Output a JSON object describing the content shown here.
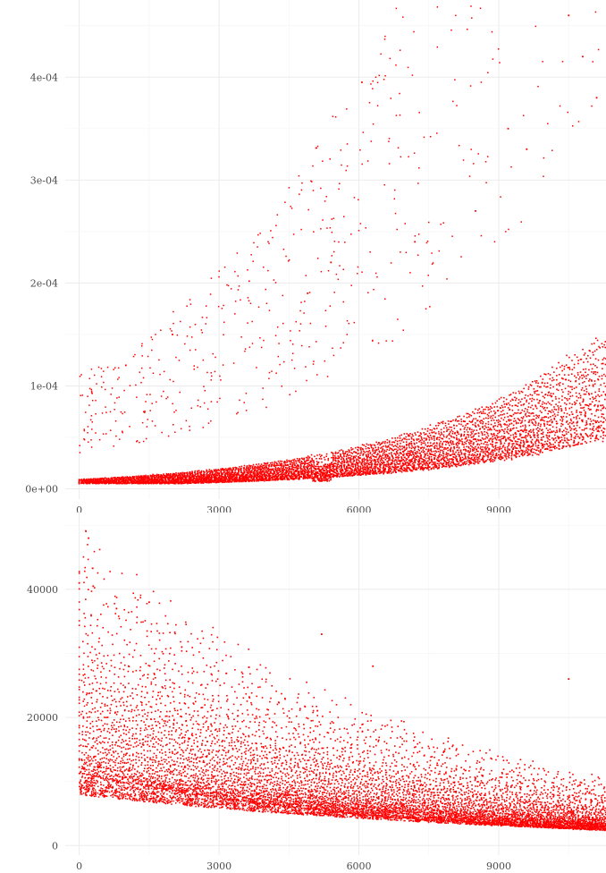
{
  "charts": [
    {
      "type": "scatter",
      "title": "",
      "xlabel": "",
      "ylabel": "",
      "xlim": [
        -300,
        11300
      ],
      "ylim": [
        -1e-05,
        0.000475
      ],
      "x_ticks": [
        0,
        3000,
        6000,
        9000
      ],
      "x_tick_labels": [
        "0",
        "3000",
        "6000",
        "9000"
      ],
      "y_ticks": [
        0,
        0.0001,
        0.0002,
        0.0003,
        0.0004
      ],
      "y_tick_labels": [
        "0e+00",
        "1e-04",
        "2e-04",
        "3e-04",
        "4e-04"
      ],
      "grid": true,
      "point_color": "#ff0000",
      "band_model": {
        "k_min": 1,
        "k_max": 42,
        "base": 9.5e-06,
        "c_offset": 26000,
        "step": 1400
      },
      "series": [
        {
          "x": [
            0,
            500,
            1000,
            2000,
            3000,
            4000,
            5000,
            6000,
            7000,
            8000,
            9000,
            10000,
            11000
          ],
          "y": [
            6e-05,
            6.5e-05,
            7e-05,
            8e-05,
            9.5e-05,
            0.00011,
            0.00012,
            0.000135,
            0.00016,
            0.00019,
            0.00023,
            0.00028,
            0.00034
          ]
        },
        {
          "x": [
            10500,
            10800,
            11100,
            9200,
            9600,
            4900,
            5400,
            7200,
            8500,
            2000,
            1000
          ],
          "y": [
            0.00046,
            0.00042,
            0.00038,
            0.00035,
            0.00033,
            0.00019,
            0.00022,
            0.00024,
            0.00027,
            0.00015,
            0.00012
          ]
        }
      ]
    },
    {
      "type": "scatter",
      "title": "",
      "xlabel": "",
      "ylabel": "",
      "xlim": [
        -300,
        11300
      ],
      "ylim": [
        -1500,
        52000
      ],
      "x_ticks": [
        0,
        3000,
        6000,
        9000
      ],
      "x_tick_labels": [
        "0",
        "3000",
        "6000",
        "9000"
      ],
      "y_ticks": [
        0,
        20000,
        40000
      ],
      "y_tick_labels": [
        "0",
        "20000",
        "40000"
      ],
      "grid": true,
      "point_color": "#ff0000",
      "series": [
        {
          "x": [
            0,
            500,
            1000,
            2000,
            3000,
            4000,
            5000,
            6000,
            7000,
            8000,
            9000,
            10000,
            11000
          ],
          "y": [
            16500,
            15500,
            14800,
            13000,
            11200,
            9800,
            8500,
            7400,
            6600,
            5800,
            5000,
            4300,
            3800
          ]
        },
        {
          "x": [
            0,
            300,
            800,
            1500,
            2200,
            5200,
            6300,
            200,
            10500
          ],
          "y": [
            41000,
            40500,
            37000,
            38000,
            31000,
            33000,
            28000,
            48000,
            26000
          ]
        }
      ]
    }
  ]
}
